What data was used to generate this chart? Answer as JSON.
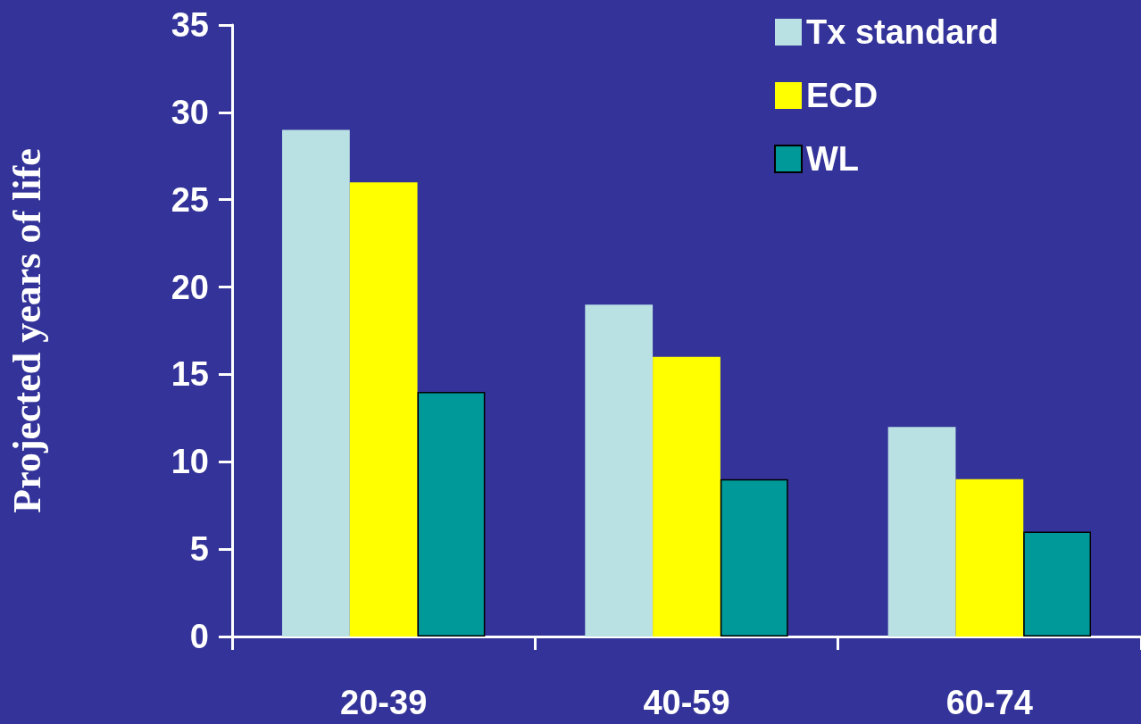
{
  "chart_data": {
    "type": "bar",
    "ylabel": "Projected years of life",
    "categories": [
      "20-39",
      "40-59",
      "60-74"
    ],
    "series": [
      {
        "name": "Tx standard",
        "color": "#b9e0e3",
        "values": [
          29,
          19,
          12
        ]
      },
      {
        "name": "ECD",
        "color": "#ffff00",
        "values": [
          26,
          16,
          9
        ]
      },
      {
        "name": "WL",
        "color": "#009999",
        "values": [
          14,
          9,
          6
        ]
      }
    ],
    "ylim": [
      0,
      35
    ],
    "yticks": [
      0,
      5,
      10,
      15,
      20,
      25,
      30,
      35
    ],
    "grid": false,
    "legend": "top right"
  }
}
